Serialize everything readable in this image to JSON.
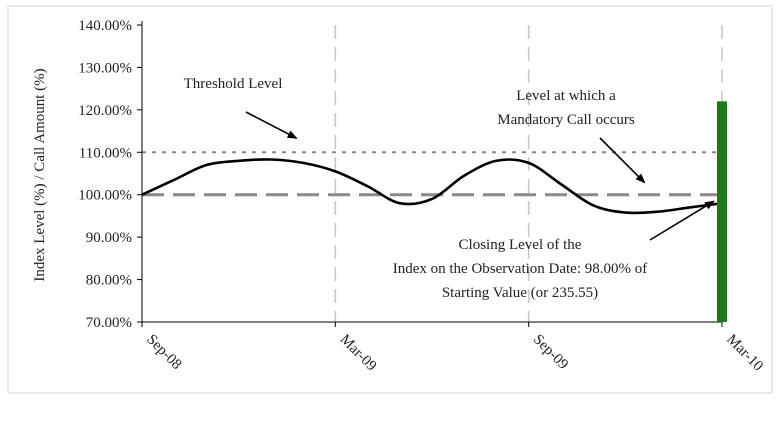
{
  "chart_data": {
    "type": "line",
    "ylabel": "Index Level (%) / Call Amount (%)",
    "xlabel": "",
    "ylim": [
      70,
      140
    ],
    "y_ticks": [
      70,
      80,
      90,
      100,
      110,
      120,
      130,
      140
    ],
    "y_tick_labels": [
      "70.00%",
      "80.00%",
      "90.00%",
      "100.00%",
      "110.00%",
      "120.00%",
      "130.00%",
      "140.00%"
    ],
    "x_ticks": [
      "Sep-08",
      "Mar-09",
      "Sep-09",
      "Mar-10"
    ],
    "x_tick_months": [
      0,
      6,
      12,
      18
    ],
    "xlim_months": [
      0,
      18
    ],
    "grid_x": true,
    "grid_y": false,
    "series": [
      {
        "color": "#000000",
        "style": "solid",
        "x_months": [
          0,
          1,
          2,
          3,
          4,
          5,
          6,
          7,
          8,
          9,
          10,
          11,
          12,
          13,
          14,
          15,
          16,
          17,
          18
        ],
        "values": [
          100,
          103.5,
          107,
          108,
          108.3,
          107.5,
          105.5,
          102,
          98,
          99,
          104.5,
          108,
          107.5,
          102.5,
          97.5,
          95.8,
          96,
          97,
          98
        ]
      }
    ],
    "reference_lines": [
      {
        "value": 110,
        "style": "dotted",
        "color": "#888888"
      },
      {
        "value": 100,
        "style": "dashed",
        "color": "#888888"
      }
    ],
    "bars": [
      {
        "x_month": 18,
        "value": 122,
        "color": "#1a7a1a"
      }
    ],
    "annotations": [
      {
        "lines": [
          "Threshold Level"
        ],
        "arrow_to": {
          "x_month": 4.8,
          "y": 110
        }
      },
      {
        "lines": [
          "Level at which a",
          "Mandatory Call occurs"
        ],
        "arrow_to": {
          "x_month": 15.6,
          "y": 100
        }
      },
      {
        "lines": [
          "Closing Level of the",
          "Index on the Observation Date: 98.00% of",
          "Starting Value (or 235.55)"
        ],
        "arrow_to": {
          "x_month": 18,
          "y": 98
        }
      }
    ]
  }
}
